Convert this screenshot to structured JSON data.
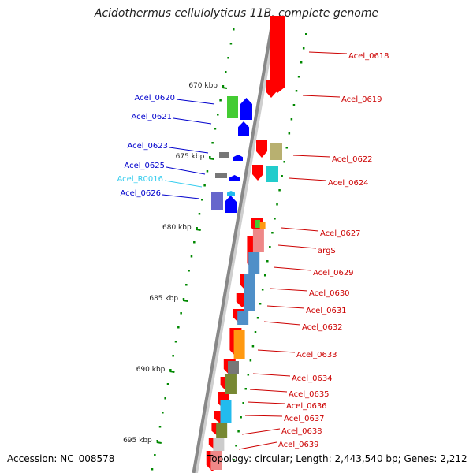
{
  "title": "Acidothermus cellulolyticus 11B, complete genome",
  "footer": {
    "accession": "Accession: NC_008578",
    "topology": "Topology: circular; Length: 2,443,540 bp; Genes: 2,212"
  },
  "colors": {
    "forward_arrow": "#ff0000",
    "reverse_arrow": "#0000ff",
    "forward_label": "#cc0000",
    "reverse_label": "#0000cc",
    "rna_label": "#33ccee",
    "backbone": "#888888",
    "tick_mark": "#008800"
  },
  "scale_ticks": [
    "670 kbp",
    "675 kbp",
    "680 kbp",
    "685 kbp",
    "690 kbp",
    "695 kbp"
  ],
  "left_labels": [
    {
      "text": "Acel_0620",
      "kind": "reverse"
    },
    {
      "text": "Acel_0621",
      "kind": "reverse"
    },
    {
      "text": "Acel_0623",
      "kind": "reverse"
    },
    {
      "text": "Acel_0625",
      "kind": "reverse"
    },
    {
      "text": "Acel_R0016",
      "kind": "rna"
    },
    {
      "text": "Acel_0626",
      "kind": "reverse"
    }
  ],
  "right_labels": [
    "Acel_0618",
    "Acel_0619",
    "Acel_0622",
    "Acel_0624",
    "Acel_0627",
    "argS",
    "Acel_0629",
    "Acel_0630",
    "Acel_0631",
    "Acel_0632",
    "Acel_0633",
    "Acel_0634",
    "Acel_0635",
    "Acel_0636",
    "Acel_0637",
    "Acel_0638",
    "Acel_0639"
  ],
  "feature_colors": {
    "green": "#44cc33",
    "khaki": "#b8b070",
    "teal": "#22cccc",
    "purple": "#6666cc",
    "orange": "#ff9911",
    "pink": "#ee8888",
    "steel_blue": "#4f8fc8",
    "gray": "#777777",
    "olive": "#778833",
    "cyan": "#22bbee",
    "light_gray": "#cccccc"
  }
}
